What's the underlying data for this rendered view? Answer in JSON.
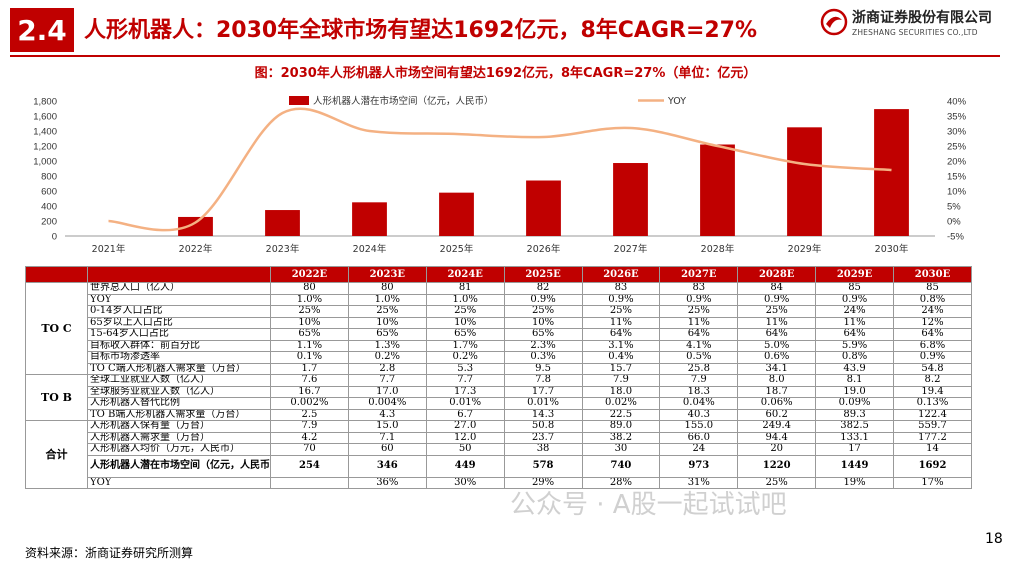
{
  "header": {
    "section_number": "2.4",
    "title": "人形机器人：2030年全球市场有望达1692亿元，8年CAGR=27%",
    "logo_cn": "浙商证券股份有限公司",
    "logo_en": "ZHESHANG SECURITIES CO.,LTD"
  },
  "figure_title": "图：2030年人形机器人市场空间有望达1692亿元，8年CAGR=27%（单位：亿元）",
  "chart_data": {
    "type": "bar",
    "categories": [
      "2021年",
      "2022年",
      "2023年",
      "2024年",
      "2025年",
      "2026年",
      "2027年",
      "2028年",
      "2029年",
      "2030年"
    ],
    "series": [
      {
        "name": "人形机器人潜在市场空间（亿元，人民币）",
        "type": "bar",
        "axis": "left",
        "values": [
          0,
          254,
          346,
          449,
          578,
          740,
          973,
          1220,
          1449,
          1692
        ]
      },
      {
        "name": "YOY",
        "type": "line",
        "axis": "right",
        "values": [
          0,
          -0.5,
          36,
          30,
          29,
          28,
          31,
          25,
          19,
          17
        ]
      }
    ],
    "y_left": {
      "min": 0,
      "max": 1800,
      "ticks": [
        "0",
        "200",
        "400",
        "600",
        "800",
        "1,000",
        "1,200",
        "1,400",
        "1,600",
        "1,800"
      ]
    },
    "y_right": {
      "min": -5,
      "max": 40,
      "ticks": [
        "-5%",
        "0%",
        "5%",
        "10%",
        "15%",
        "20%",
        "25%",
        "30%",
        "35%",
        "40%"
      ]
    },
    "legend": "top",
    "colors": {
      "bar": "#c00000",
      "line": "#f4b183"
    }
  },
  "table": {
    "headers": [
      "",
      "",
      "2022E",
      "2023E",
      "2024E",
      "2025E",
      "2026E",
      "2027E",
      "2028E",
      "2029E",
      "2030E"
    ],
    "groups": [
      {
        "name": "TO C",
        "rows": [
          {
            "label": "世界总人口（亿人）",
            "values": [
              "80",
              "80",
              "81",
              "82",
              "83",
              "83",
              "84",
              "85",
              "85"
            ]
          },
          {
            "label": "YOY",
            "values": [
              "1.0%",
              "1.0%",
              "1.0%",
              "0.9%",
              "0.9%",
              "0.9%",
              "0.9%",
              "0.9%",
              "0.8%"
            ]
          },
          {
            "label": "0-14岁人口占比",
            "values": [
              "25%",
              "25%",
              "25%",
              "25%",
              "25%",
              "25%",
              "25%",
              "24%",
              "24%"
            ]
          },
          {
            "label": "65岁以上人口占比",
            "values": [
              "10%",
              "10%",
              "10%",
              "10%",
              "11%",
              "11%",
              "11%",
              "11%",
              "12%"
            ]
          },
          {
            "label": "15-64岁人口占比",
            "values": [
              "65%",
              "65%",
              "65%",
              "65%",
              "64%",
              "64%",
              "64%",
              "64%",
              "64%"
            ]
          },
          {
            "label": "目标收入群体：前百分比",
            "values": [
              "1.1%",
              "1.3%",
              "1.7%",
              "2.3%",
              "3.1%",
              "4.1%",
              "5.0%",
              "5.9%",
              "6.8%"
            ]
          },
          {
            "label": "目标市场渗透率",
            "values": [
              "0.1%",
              "0.2%",
              "0.2%",
              "0.3%",
              "0.4%",
              "0.5%",
              "0.6%",
              "0.8%",
              "0.9%"
            ]
          },
          {
            "label": "TO C端人形机器人需求量（万台）",
            "values": [
              "1.7",
              "2.8",
              "5.3",
              "9.5",
              "15.7",
              "25.8",
              "34.1",
              "43.9",
              "54.8"
            ]
          }
        ]
      },
      {
        "name": "TO B",
        "rows": [
          {
            "label": "全球工业就业人数（亿人）",
            "values": [
              "7.6",
              "7.7",
              "7.7",
              "7.8",
              "7.9",
              "7.9",
              "8.0",
              "8.1",
              "8.2"
            ]
          },
          {
            "label": "全球服务业就业人数（亿人）",
            "values": [
              "16.7",
              "17.0",
              "17.3",
              "17.7",
              "18.0",
              "18.3",
              "18.7",
              "19.0",
              "19.4"
            ]
          },
          {
            "label": "人形机器人替代比例",
            "values": [
              "0.002%",
              "0.004%",
              "0.01%",
              "0.01%",
              "0.02%",
              "0.04%",
              "0.06%",
              "0.09%",
              "0.13%"
            ]
          },
          {
            "label": "TO B端人形机器人需求量（万台）",
            "values": [
              "2.5",
              "4.3",
              "6.7",
              "14.3",
              "22.5",
              "40.3",
              "60.2",
              "89.3",
              "122.4"
            ]
          }
        ]
      },
      {
        "name": "合计",
        "rows": [
          {
            "label": "人形机器人保有量（万台）",
            "values": [
              "7.9",
              "15.0",
              "27.0",
              "50.8",
              "89.0",
              "155.0",
              "249.4",
              "382.5",
              "559.7"
            ]
          },
          {
            "label": "人形机器人需求量（万台）",
            "values": [
              "4.2",
              "7.1",
              "12.0",
              "23.7",
              "38.2",
              "66.0",
              "94.4",
              "133.1",
              "177.2"
            ]
          },
          {
            "label": "人形机器人均价（万元，人民币）",
            "values": [
              "70",
              "60",
              "50",
              "38",
              "30",
              "24",
              "20",
              "17",
              "14"
            ]
          },
          {
            "label": "人形机器人潜在市场空间（亿元，人民币）",
            "values": [
              "254",
              "346",
              "449",
              "578",
              "740",
              "973",
              "1220",
              "1449",
              "1692"
            ],
            "bold": true,
            "tall": true
          },
          {
            "label": "YOY",
            "values": [
              "",
              "36%",
              "30%",
              "29%",
              "28%",
              "31%",
              "25%",
              "19%",
              "17%"
            ]
          }
        ]
      }
    ]
  },
  "watermark": "公众号 · A股一起试试吧",
  "source": "资料来源：浙商证券研究所测算",
  "page_number": "18"
}
